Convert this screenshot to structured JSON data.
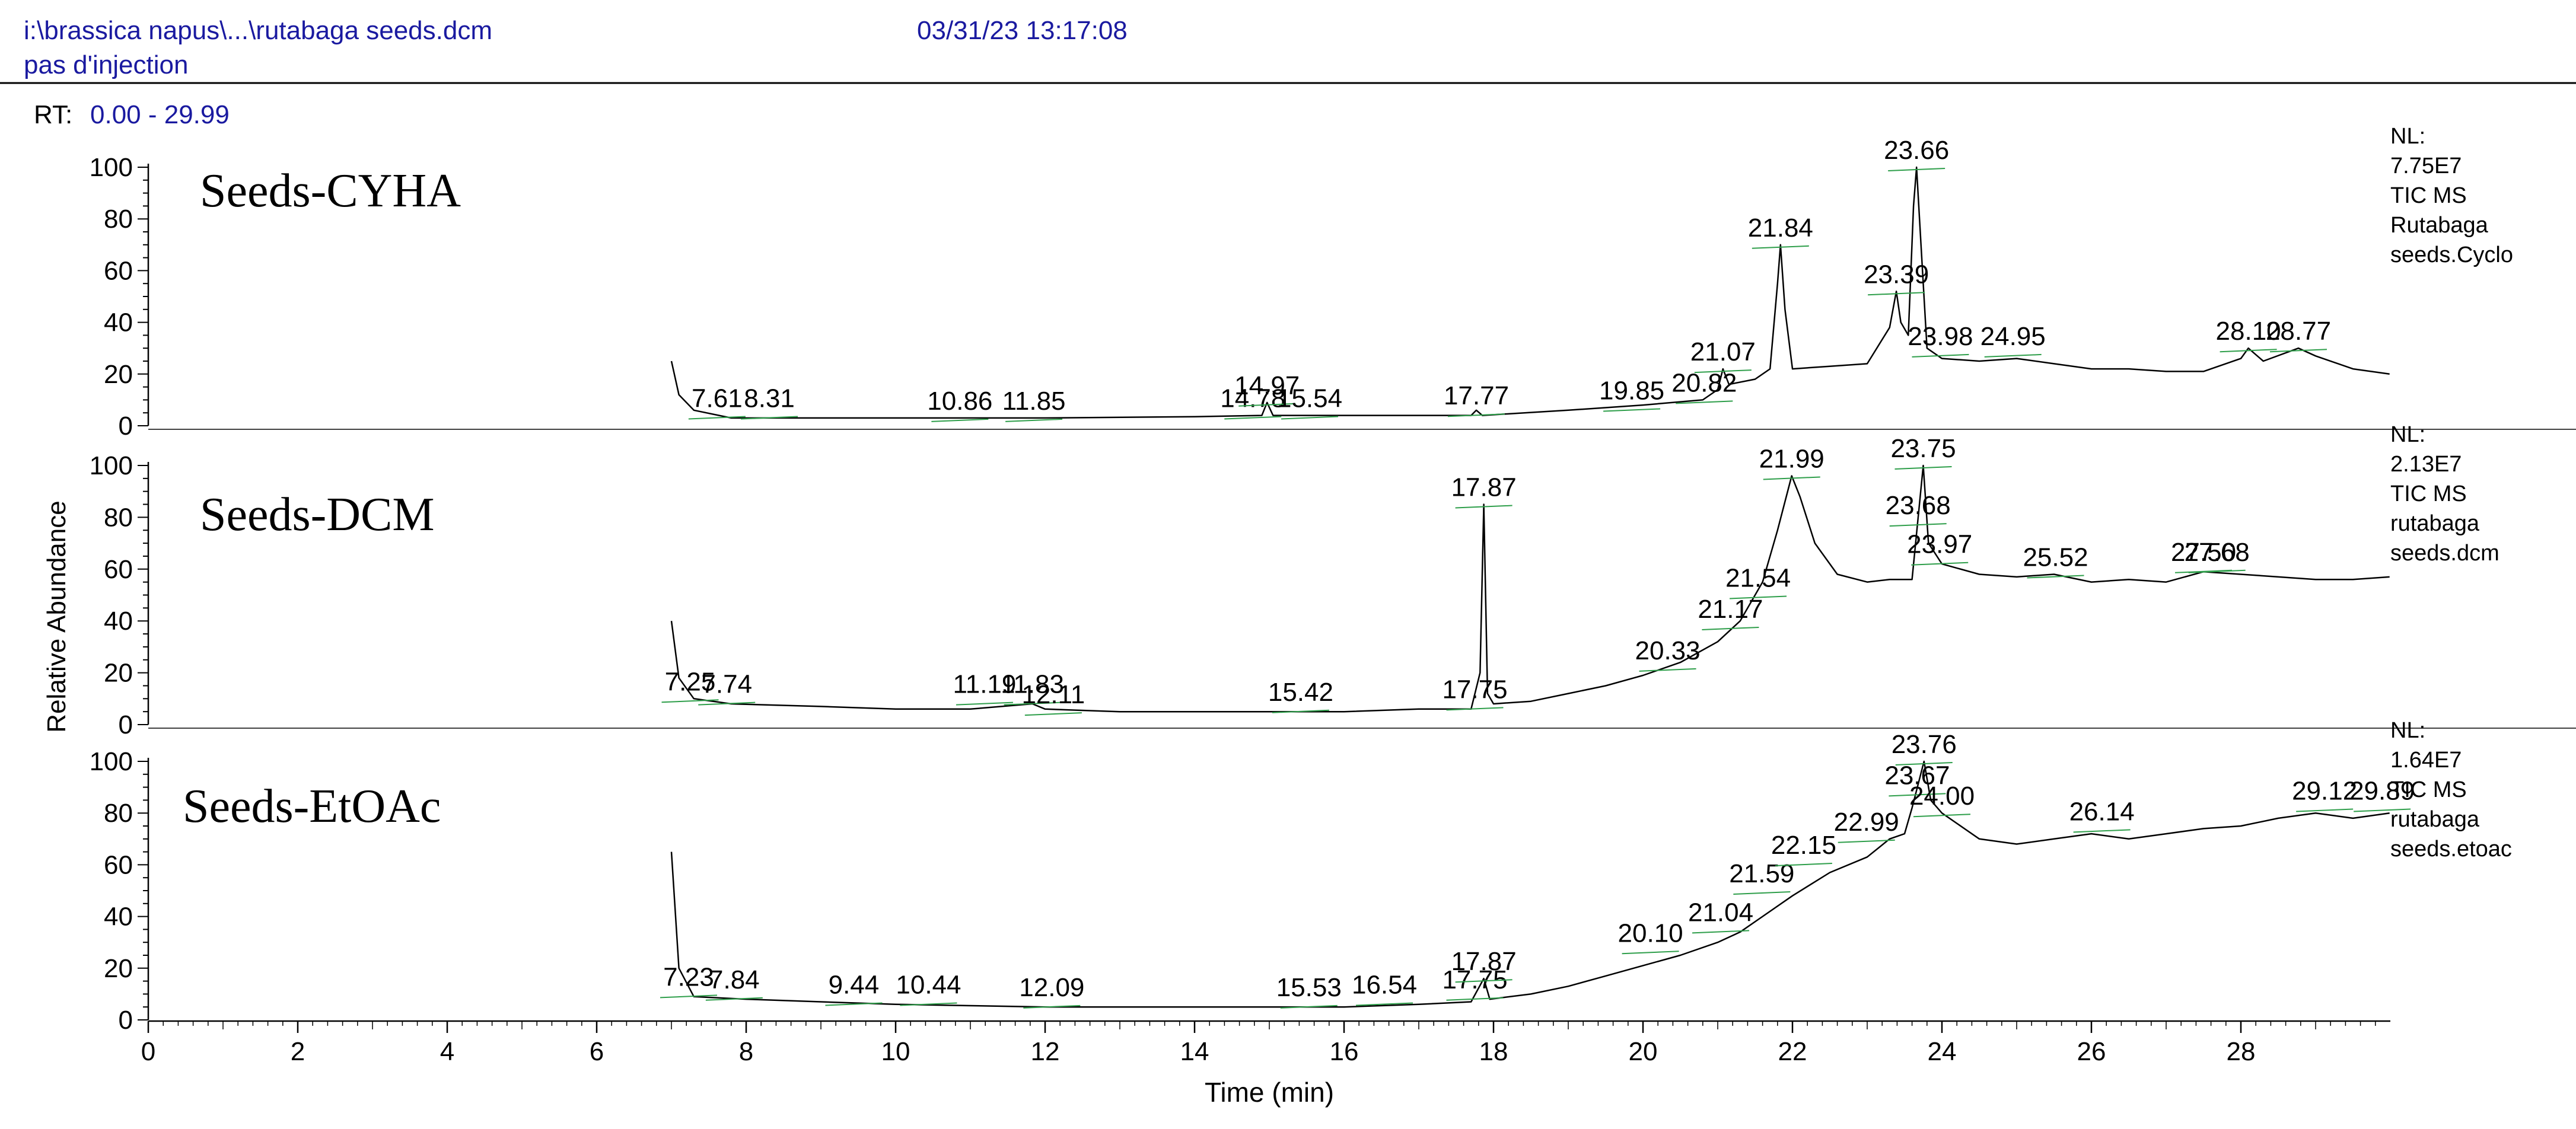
{
  "header": {
    "file_path": "i:\\brassica napus\\...\\rutabaga seeds.dcm",
    "timestamp": "03/31/23 13:17:08",
    "subtitle": "pas d'injection",
    "rt_label": "RT:",
    "rt_range": "0.00 - 29.99"
  },
  "colors": {
    "trace": "#000000",
    "text_blue": "#1a1aa0",
    "baseline_marker": "#2e9e4a"
  },
  "chart_data": {
    "type": "line",
    "xlabel": "Time (min)",
    "ylabel": "Relative Abundance",
    "xlim": [
      0,
      30
    ],
    "ylim": [
      0,
      100
    ],
    "x_ticks": [
      "0",
      "2",
      "4",
      "6",
      "8",
      "10",
      "12",
      "14",
      "16",
      "18",
      "20",
      "22",
      "24",
      "26",
      "28"
    ],
    "y_ticks": [
      "0",
      "20",
      "40",
      "60",
      "80",
      "100"
    ],
    "panels": [
      {
        "name": "Seeds-CYHA",
        "nl_lines": [
          "NL:",
          "7.75E7",
          "TIC  MS",
          "Rutabaga",
          "seeds.Cyclo"
        ],
        "peak_labels": [
          {
            "rt": "7.61",
            "x": 7.61,
            "y": 4
          },
          {
            "rt": "8.31",
            "x": 8.31,
            "y": 4
          },
          {
            "rt": "10.86",
            "x": 10.86,
            "y": 3
          },
          {
            "rt": "11.85",
            "x": 11.85,
            "y": 3
          },
          {
            "rt": "14.78",
            "x": 14.78,
            "y": 4
          },
          {
            "rt": "14.97",
            "x": 14.97,
            "y": 9
          },
          {
            "rt": "15.54",
            "x": 15.54,
            "y": 4
          },
          {
            "rt": "17.77",
            "x": 17.77,
            "y": 5
          },
          {
            "rt": "19.85",
            "x": 19.85,
            "y": 7
          },
          {
            "rt": "20.82",
            "x": 20.82,
            "y": 10
          },
          {
            "rt": "21.07",
            "x": 21.07,
            "y": 22
          },
          {
            "rt": "21.84",
            "x": 21.84,
            "y": 70
          },
          {
            "rt": "23.39",
            "x": 23.39,
            "y": 52
          },
          {
            "rt": "23.66",
            "x": 23.66,
            "y": 100
          },
          {
            "rt": "23.98",
            "x": 23.98,
            "y": 28
          },
          {
            "rt": "24.95",
            "x": 24.95,
            "y": 28
          },
          {
            "rt": "28.10",
            "x": 28.1,
            "y": 30
          },
          {
            "rt": "28.77",
            "x": 28.77,
            "y": 30
          }
        ],
        "points": [
          [
            7.0,
            25
          ],
          [
            7.1,
            12
          ],
          [
            7.3,
            6
          ],
          [
            7.8,
            3
          ],
          [
            10,
            3
          ],
          [
            12,
            3
          ],
          [
            14,
            3.5
          ],
          [
            14.9,
            4
          ],
          [
            14.97,
            9
          ],
          [
            15.05,
            4
          ],
          [
            16,
            4
          ],
          [
            17.7,
            4
          ],
          [
            17.77,
            6
          ],
          [
            17.85,
            4
          ],
          [
            19,
            6
          ],
          [
            20,
            8
          ],
          [
            20.8,
            10
          ],
          [
            21.0,
            14
          ],
          [
            21.07,
            22
          ],
          [
            21.15,
            16
          ],
          [
            21.5,
            18
          ],
          [
            21.7,
            22
          ],
          [
            21.8,
            55
          ],
          [
            21.84,
            70
          ],
          [
            21.9,
            45
          ],
          [
            22.0,
            22
          ],
          [
            22.5,
            23
          ],
          [
            23.0,
            24
          ],
          [
            23.3,
            38
          ],
          [
            23.39,
            52
          ],
          [
            23.45,
            40
          ],
          [
            23.55,
            35
          ],
          [
            23.62,
            85
          ],
          [
            23.66,
            100
          ],
          [
            23.72,
            70
          ],
          [
            23.8,
            30
          ],
          [
            24,
            26
          ],
          [
            24.5,
            25
          ],
          [
            25,
            26
          ],
          [
            25.5,
            24
          ],
          [
            26,
            22
          ],
          [
            26.5,
            22
          ],
          [
            27,
            21
          ],
          [
            27.5,
            21
          ],
          [
            28.0,
            26
          ],
          [
            28.1,
            30
          ],
          [
            28.3,
            25
          ],
          [
            28.77,
            30
          ],
          [
            29,
            27
          ],
          [
            29.5,
            22
          ],
          [
            29.99,
            20
          ]
        ]
      },
      {
        "name": "Seeds-DCM",
        "nl_lines": [
          "NL:",
          "2.13E7",
          "TIC  MS",
          "rutabaga",
          "seeds.dcm"
        ],
        "peak_labels": [
          {
            "rt": "7.25",
            "x": 7.25,
            "y": 10
          },
          {
            "rt": "7.74",
            "x": 7.74,
            "y": 9
          },
          {
            "rt": "11.19",
            "x": 11.19,
            "y": 9
          },
          {
            "rt": "11.83",
            "x": 11.83,
            "y": 9
          },
          {
            "rt": "12.11",
            "x": 12.11,
            "y": 5
          },
          {
            "rt": "15.42",
            "x": 15.42,
            "y": 6
          },
          {
            "rt": "17.75",
            "x": 17.75,
            "y": 7
          },
          {
            "rt": "17.87",
            "x": 17.87,
            "y": 85
          },
          {
            "rt": "20.33",
            "x": 20.33,
            "y": 22
          },
          {
            "rt": "21.17",
            "x": 21.17,
            "y": 38
          },
          {
            "rt": "21.54",
            "x": 21.54,
            "y": 50
          },
          {
            "rt": "21.99",
            "x": 21.99,
            "y": 96
          },
          {
            "rt": "23.68",
            "x": 23.68,
            "y": 78
          },
          {
            "rt": "23.75",
            "x": 23.75,
            "y": 100
          },
          {
            "rt": "23.97",
            "x": 23.97,
            "y": 63
          },
          {
            "rt": "25.52",
            "x": 25.52,
            "y": 58
          },
          {
            "rt": "27.50",
            "x": 27.5,
            "y": 60
          },
          {
            "rt": "27.68",
            "x": 27.68,
            "y": 60
          }
        ],
        "points": [
          [
            7.0,
            40
          ],
          [
            7.1,
            18
          ],
          [
            7.3,
            10
          ],
          [
            7.8,
            8
          ],
          [
            9,
            7
          ],
          [
            10,
            6
          ],
          [
            11,
            6
          ],
          [
            11.83,
            8
          ],
          [
            12,
            6
          ],
          [
            13,
            5
          ],
          [
            14,
            5
          ],
          [
            15,
            5
          ],
          [
            16,
            5
          ],
          [
            17,
            6
          ],
          [
            17.7,
            6
          ],
          [
            17.82,
            20
          ],
          [
            17.87,
            85
          ],
          [
            17.92,
            12
          ],
          [
            18.0,
            8
          ],
          [
            18.5,
            9
          ],
          [
            19,
            12
          ],
          [
            19.5,
            15
          ],
          [
            20,
            19
          ],
          [
            20.5,
            24
          ],
          [
            21,
            32
          ],
          [
            21.3,
            40
          ],
          [
            21.6,
            55
          ],
          [
            21.8,
            75
          ],
          [
            21.99,
            96
          ],
          [
            22.1,
            88
          ],
          [
            22.3,
            70
          ],
          [
            22.6,
            58
          ],
          [
            23,
            55
          ],
          [
            23.3,
            56
          ],
          [
            23.6,
            56
          ],
          [
            23.75,
            100
          ],
          [
            23.82,
            70
          ],
          [
            24,
            62
          ],
          [
            24.5,
            58
          ],
          [
            25,
            57
          ],
          [
            25.5,
            58
          ],
          [
            26,
            55
          ],
          [
            26.5,
            56
          ],
          [
            27,
            55
          ],
          [
            27.5,
            59
          ],
          [
            28,
            58
          ],
          [
            28.5,
            57
          ],
          [
            29,
            56
          ],
          [
            29.5,
            56
          ],
          [
            29.99,
            57
          ]
        ]
      },
      {
        "name": "Seeds-EtOAc",
        "nl_lines": [
          "NL:",
          "1.64E7",
          "TIC  MS",
          "rutabaga",
          "seeds.etoac"
        ],
        "peak_labels": [
          {
            "rt": "7.23",
            "x": 7.23,
            "y": 10
          },
          {
            "rt": "7.84",
            "x": 7.84,
            "y": 9
          },
          {
            "rt": "9.44",
            "x": 9.44,
            "y": 7
          },
          {
            "rt": "10.44",
            "x": 10.44,
            "y": 7
          },
          {
            "rt": "12.09",
            "x": 12.09,
            "y": 6
          },
          {
            "rt": "15.53",
            "x": 15.53,
            "y": 6
          },
          {
            "rt": "16.54",
            "x": 16.54,
            "y": 7
          },
          {
            "rt": "17.75",
            "x": 17.75,
            "y": 9
          },
          {
            "rt": "17.87",
            "x": 17.87,
            "y": 16
          },
          {
            "rt": "20.10",
            "x": 20.1,
            "y": 27
          },
          {
            "rt": "21.04",
            "x": 21.04,
            "y": 35
          },
          {
            "rt": "21.59",
            "x": 21.59,
            "y": 50
          },
          {
            "rt": "22.15",
            "x": 22.15,
            "y": 61
          },
          {
            "rt": "22.99",
            "x": 22.99,
            "y": 70
          },
          {
            "rt": "23.67",
            "x": 23.67,
            "y": 88
          },
          {
            "rt": "23.76",
            "x": 23.76,
            "y": 100
          },
          {
            "rt": "24.00",
            "x": 24.0,
            "y": 80
          },
          {
            "rt": "26.14",
            "x": 26.14,
            "y": 74
          },
          {
            "rt": "29.12",
            "x": 29.12,
            "y": 82
          },
          {
            "rt": "29.89",
            "x": 29.89,
            "y": 82
          }
        ],
        "points": [
          [
            7.0,
            65
          ],
          [
            7.1,
            20
          ],
          [
            7.3,
            9
          ],
          [
            8,
            8
          ],
          [
            9,
            7
          ],
          [
            10,
            6
          ],
          [
            11,
            5.5
          ],
          [
            12,
            5
          ],
          [
            13,
            5
          ],
          [
            14,
            5
          ],
          [
            15,
            5
          ],
          [
            16,
            5
          ],
          [
            17,
            6
          ],
          [
            17.7,
            7
          ],
          [
            17.87,
            16
          ],
          [
            17.95,
            8
          ],
          [
            18.5,
            10
          ],
          [
            19,
            13
          ],
          [
            19.5,
            17
          ],
          [
            20,
            21
          ],
          [
            20.5,
            25
          ],
          [
            21,
            30
          ],
          [
            21.3,
            34
          ],
          [
            21.6,
            40
          ],
          [
            22,
            48
          ],
          [
            22.5,
            57
          ],
          [
            23,
            63
          ],
          [
            23.3,
            70
          ],
          [
            23.5,
            72
          ],
          [
            23.6,
            82
          ],
          [
            23.76,
            100
          ],
          [
            23.85,
            85
          ],
          [
            24,
            80
          ],
          [
            24.5,
            70
          ],
          [
            25,
            68
          ],
          [
            25.5,
            70
          ],
          [
            26,
            72
          ],
          [
            26.5,
            70
          ],
          [
            27,
            72
          ],
          [
            27.5,
            74
          ],
          [
            28,
            75
          ],
          [
            28.5,
            78
          ],
          [
            29,
            80
          ],
          [
            29.5,
            78
          ],
          [
            29.99,
            80
          ]
        ]
      }
    ]
  }
}
